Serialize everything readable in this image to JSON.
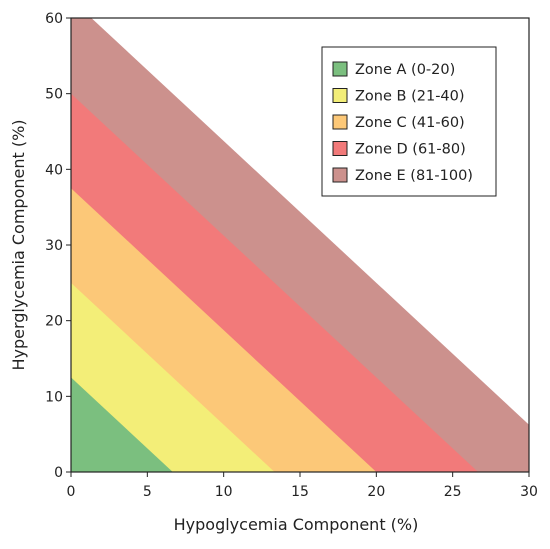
{
  "chart_data": {
    "type": "area",
    "xlabel": "Hypoglycemia Component (%)",
    "ylabel": "Hyperglycemia Component (%)",
    "xlim": [
      0,
      30
    ],
    "ylim": [
      0,
      60
    ],
    "x_ticks": [
      0,
      5,
      10,
      15,
      20,
      25,
      30
    ],
    "y_ticks": [
      0,
      10,
      20,
      30,
      40,
      50,
      60
    ],
    "grid": false,
    "legend_position": "top-right",
    "zone_boundary_formula": "GRI = 3.0 × Hypoglycemia + 1.6 × Hyperglycemia",
    "series": [
      {
        "name": "Zone A (0-20)",
        "gri_min": 0,
        "gri_max": 20,
        "color": "#7bbf7f"
      },
      {
        "name": "Zone B (21-40)",
        "gri_min": 20,
        "gri_max": 40,
        "color": "#f3ee78"
      },
      {
        "name": "Zone C (41-60)",
        "gri_min": 40,
        "gri_max": 60,
        "color": "#fcc878"
      },
      {
        "name": "Zone D (61-80)",
        "gri_min": 60,
        "gri_max": 80,
        "color": "#f27a7a"
      },
      {
        "name": "Zone E (81-100)",
        "gri_min": 80,
        "gri_max": 100,
        "color": "#cc918d"
      }
    ]
  }
}
